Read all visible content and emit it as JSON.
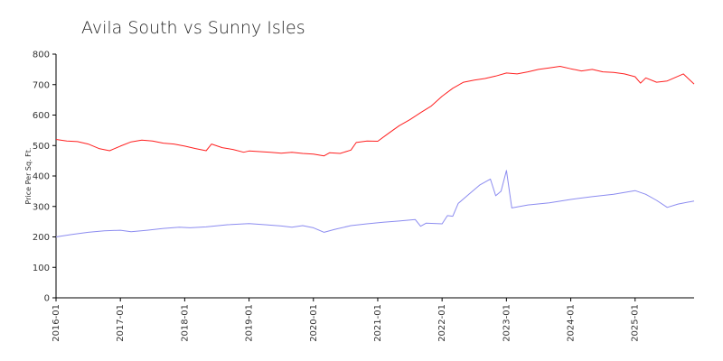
{
  "chart_data": {
    "type": "line",
    "title": "Avila South vs Sunny Isles",
    "xlabel": "",
    "ylabel": "Price Per Sq. Ft.",
    "ylim": [
      0,
      800
    ],
    "yticks": [
      0,
      100,
      200,
      300,
      400,
      500,
      600,
      700,
      800
    ],
    "xlim": [
      "2016-01",
      "2025-12"
    ],
    "xticks": [
      "2016-01",
      "2017-01",
      "2018-01",
      "2019-01",
      "2020-01",
      "2021-01",
      "2022-01",
      "2023-01",
      "2024-01",
      "2025-01"
    ],
    "grid": false,
    "legend": "none",
    "series": [
      {
        "color": "#ff2020",
        "points": [
          [
            "2016-01",
            520
          ],
          [
            "2016-03",
            515
          ],
          [
            "2016-05",
            513
          ],
          [
            "2016-07",
            505
          ],
          [
            "2016-09",
            490
          ],
          [
            "2016-11",
            483
          ],
          [
            "2017-01",
            498
          ],
          [
            "2017-03",
            512
          ],
          [
            "2017-05",
            518
          ],
          [
            "2017-07",
            515
          ],
          [
            "2017-09",
            508
          ],
          [
            "2017-11",
            505
          ],
          [
            "2018-01",
            498
          ],
          [
            "2018-03",
            490
          ],
          [
            "2018-05",
            483
          ],
          [
            "2018-06",
            505
          ],
          [
            "2018-08",
            493
          ],
          [
            "2018-10",
            487
          ],
          [
            "2018-12",
            478
          ],
          [
            "2019-01",
            482
          ],
          [
            "2019-03",
            480
          ],
          [
            "2019-05",
            478
          ],
          [
            "2019-07",
            475
          ],
          [
            "2019-09",
            478
          ],
          [
            "2019-11",
            474
          ],
          [
            "2020-01",
            472
          ],
          [
            "2020-03",
            466
          ],
          [
            "2020-04",
            476
          ],
          [
            "2020-06",
            474
          ],
          [
            "2020-08",
            485
          ],
          [
            "2020-09",
            510
          ],
          [
            "2020-11",
            515
          ],
          [
            "2021-01",
            514
          ],
          [
            "2021-03",
            540
          ],
          [
            "2021-05",
            565
          ],
          [
            "2021-07",
            585
          ],
          [
            "2021-09",
            608
          ],
          [
            "2021-11",
            630
          ],
          [
            "2022-01",
            662
          ],
          [
            "2022-03",
            688
          ],
          [
            "2022-05",
            708
          ],
          [
            "2022-07",
            715
          ],
          [
            "2022-09",
            720
          ],
          [
            "2022-11",
            728
          ],
          [
            "2023-01",
            738
          ],
          [
            "2023-03",
            735
          ],
          [
            "2023-05",
            742
          ],
          [
            "2023-07",
            750
          ],
          [
            "2023-09",
            755
          ],
          [
            "2023-11",
            760
          ],
          [
            "2024-01",
            752
          ],
          [
            "2024-03",
            745
          ],
          [
            "2024-05",
            750
          ],
          [
            "2024-07",
            742
          ],
          [
            "2024-09",
            740
          ],
          [
            "2024-11",
            735
          ],
          [
            "2025-01",
            726
          ],
          [
            "2025-02",
            705
          ],
          [
            "2025-03",
            722
          ],
          [
            "2025-05",
            708
          ],
          [
            "2025-07",
            712
          ],
          [
            "2025-10",
            735
          ],
          [
            "2025-12",
            702
          ]
        ]
      },
      {
        "color": "#8c8cf0",
        "points": [
          [
            "2016-01",
            200
          ],
          [
            "2016-04",
            208
          ],
          [
            "2016-07",
            215
          ],
          [
            "2016-10",
            220
          ],
          [
            "2017-01",
            222
          ],
          [
            "2017-03",
            217
          ],
          [
            "2017-06",
            222
          ],
          [
            "2017-09",
            228
          ],
          [
            "2017-12",
            232
          ],
          [
            "2018-02",
            230
          ],
          [
            "2018-05",
            233
          ],
          [
            "2018-09",
            240
          ],
          [
            "2019-01",
            244
          ],
          [
            "2019-04",
            240
          ],
          [
            "2019-07",
            236
          ],
          [
            "2019-09",
            232
          ],
          [
            "2019-11",
            237
          ],
          [
            "2020-01",
            230
          ],
          [
            "2020-03",
            215
          ],
          [
            "2020-05",
            225
          ],
          [
            "2020-08",
            237
          ],
          [
            "2020-11",
            243
          ],
          [
            "2021-02",
            248
          ],
          [
            "2021-05",
            252
          ],
          [
            "2021-08",
            257
          ],
          [
            "2021-09",
            235
          ],
          [
            "2021-10",
            245
          ],
          [
            "2022-01",
            243
          ],
          [
            "2022-02",
            270
          ],
          [
            "2022-03",
            268
          ],
          [
            "2022-04",
            310
          ],
          [
            "2022-06",
            340
          ],
          [
            "2022-08",
            370
          ],
          [
            "2022-10",
            390
          ],
          [
            "2022-11",
            335
          ],
          [
            "2022-12",
            350
          ],
          [
            "2023-01",
            418
          ],
          [
            "2023-02",
            295
          ],
          [
            "2023-05",
            305
          ],
          [
            "2023-09",
            312
          ],
          [
            "2024-01",
            323
          ],
          [
            "2024-05",
            332
          ],
          [
            "2024-09",
            340
          ],
          [
            "2025-01",
            352
          ],
          [
            "2025-03",
            340
          ],
          [
            "2025-05",
            320
          ],
          [
            "2025-07",
            297
          ],
          [
            "2025-09",
            308
          ],
          [
            "2025-12",
            318
          ]
        ]
      }
    ]
  }
}
